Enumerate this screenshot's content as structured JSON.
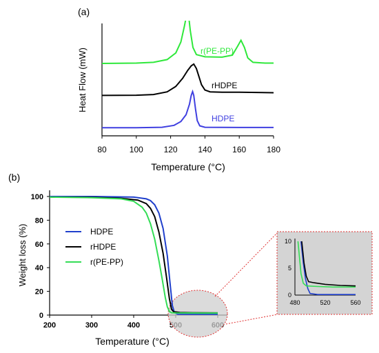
{
  "chart_data": [
    {
      "panel_label": "(a)",
      "type": "line",
      "xlabel": "Temperature (°C)",
      "ylabel": "Heat Flow (mW)",
      "xlim": [
        80,
        180
      ],
      "x_ticks": [
        "80",
        "100",
        "120",
        "140",
        "160",
        "180"
      ],
      "y_ticks_shown": false,
      "legend": "inline labels",
      "series": [
        {
          "name": "r(PE-PP)",
          "color": "#2ee83a",
          "points": [
            [
              80,
              0.25
            ],
            [
              100,
              0.28
            ],
            [
              110,
              0.35
            ],
            [
              118,
              0.6
            ],
            [
              123,
              1.2
            ],
            [
              126,
              2.2
            ],
            [
              128,
              3.6
            ],
            [
              129.5,
              4.8
            ],
            [
              130.5,
              4.6
            ],
            [
              131.5,
              3.2
            ],
            [
              133,
              1.7
            ],
            [
              135,
              1.05
            ],
            [
              140,
              0.85
            ],
            [
              150,
              0.82
            ],
            [
              156,
              1.0
            ],
            [
              159,
              1.8
            ],
            [
              161,
              2.35
            ],
            [
              163,
              1.7
            ],
            [
              165,
              0.75
            ],
            [
              168,
              0.35
            ],
            [
              175,
              0.28
            ],
            [
              180,
              0.28
            ]
          ]
        },
        {
          "name": "rHDPE",
          "color": "#000000",
          "points": [
            [
              80,
              0.2
            ],
            [
              100,
              0.22
            ],
            [
              110,
              0.3
            ],
            [
              118,
              0.6
            ],
            [
              123,
              1.2
            ],
            [
              127,
              2.1
            ],
            [
              130,
              3.0
            ],
            [
              132,
              3.5
            ],
            [
              133.5,
              3.7
            ],
            [
              135,
              3.2
            ],
            [
              136.5,
              2.3
            ],
            [
              138,
              1.4
            ],
            [
              140,
              0.8
            ],
            [
              143,
              0.6
            ],
            [
              150,
              0.55
            ],
            [
              160,
              0.55
            ],
            [
              180,
              0.5
            ]
          ]
        },
        {
          "name": "HDPE",
          "color": "#3f3fe0",
          "points": [
            [
              80,
              0.05
            ],
            [
              100,
              0.06
            ],
            [
              115,
              0.1
            ],
            [
              122,
              0.3
            ],
            [
              126,
              0.7
            ],
            [
              129,
              1.4
            ],
            [
              131,
              2.5
            ],
            [
              132,
              3.4
            ],
            [
              132.8,
              3.8
            ],
            [
              133.5,
              3.4
            ],
            [
              134.5,
              2.0
            ],
            [
              135.5,
              0.8
            ],
            [
              137,
              0.25
            ],
            [
              140,
              0.1
            ],
            [
              160,
              0.08
            ],
            [
              180,
              0.08
            ]
          ]
        }
      ]
    },
    {
      "panel_label": "(b)",
      "type": "line",
      "xlabel": "Temperature (°C)",
      "ylabel": "Weight loss (%)",
      "xlim": [
        200,
        600
      ],
      "ylim": [
        0,
        100
      ],
      "x_ticks": [
        "200",
        "300",
        "400",
        "500",
        "600"
      ],
      "y_ticks": [
        "0",
        "20",
        "40",
        "60",
        "80",
        "100"
      ],
      "legend": "left",
      "series": [
        {
          "name": "HDPE",
          "legend_label": " HDPE",
          "color": "#1f3fcc",
          "points": [
            [
              200,
              100
            ],
            [
              300,
              100
            ],
            [
              400,
              99.5
            ],
            [
              430,
              98
            ],
            [
              440,
              96.5
            ],
            [
              450,
              93
            ],
            [
              460,
              86
            ],
            [
              470,
              73
            ],
            [
              480,
              50
            ],
            [
              487,
              25
            ],
            [
              492,
              8
            ],
            [
              497,
              2
            ],
            [
              505,
              0.8
            ],
            [
              560,
              0.7
            ],
            [
              600,
              0.7
            ]
          ]
        },
        {
          "name": "rHDPE",
          "legend_label": "rHDPE",
          "color": "#000000",
          "points": [
            [
              200,
              99.5
            ],
            [
              300,
              99.3
            ],
            [
              370,
              98.5
            ],
            [
              410,
              97
            ],
            [
              430,
              94
            ],
            [
              440,
              90
            ],
            [
              450,
              83
            ],
            [
              460,
              70
            ],
            [
              470,
              52
            ],
            [
              478,
              32
            ],
            [
              485,
              14
            ],
            [
              490,
              5
            ],
            [
              495,
              2.8
            ],
            [
              510,
              2.2
            ],
            [
              540,
              2.0
            ],
            [
              600,
              1.8
            ]
          ]
        },
        {
          "name": "r(PE-PP)",
          "legend_label": "r(PE-PP)",
          "color": "#33dd55",
          "points": [
            [
              200,
              99.5
            ],
            [
              300,
              99
            ],
            [
              370,
              98
            ],
            [
              400,
              96
            ],
            [
              420,
              91
            ],
            [
              430,
              86
            ],
            [
              440,
              77
            ],
            [
              450,
              64
            ],
            [
              460,
              46
            ],
            [
              468,
              30
            ],
            [
              475,
              15
            ],
            [
              480,
              7
            ],
            [
              485,
              3
            ],
            [
              490,
              2
            ],
            [
              500,
              1.8
            ],
            [
              560,
              1.7
            ],
            [
              600,
              1.7
            ]
          ]
        }
      ]
    },
    {
      "panel_label": "inset",
      "type": "line",
      "xlim": [
        480,
        560
      ],
      "ylim": [
        0,
        10
      ],
      "x_ticks": [
        "480",
        "520",
        "560"
      ],
      "y_ticks": [
        "0",
        "5",
        "10"
      ],
      "series": [
        {
          "name": "HDPE",
          "color": "#1f3fcc",
          "points": [
            [
              488,
              10
            ],
            [
              491,
              6
            ],
            [
              494,
              3
            ],
            [
              497,
              1.2
            ],
            [
              500,
              0.3
            ],
            [
              510,
              0.1
            ],
            [
              560,
              0.1
            ]
          ]
        },
        {
          "name": "rHDPE",
          "color": "#000000",
          "points": [
            [
              489,
              10
            ],
            [
              492,
              6
            ],
            [
              495,
              3.5
            ],
            [
              498,
              2.5
            ],
            [
              505,
              2.3
            ],
            [
              520,
              2.0
            ],
            [
              540,
              1.8
            ],
            [
              560,
              1.7
            ]
          ]
        },
        {
          "name": "r(PE-PP)",
          "color": "#33dd55",
          "points": [
            [
              484,
              10
            ],
            [
              486,
              7
            ],
            [
              488,
              4
            ],
            [
              491,
              2.2
            ],
            [
              495,
              1.7
            ],
            [
              510,
              1.6
            ],
            [
              530,
              1.5
            ],
            [
              560,
              1.5
            ]
          ]
        }
      ]
    }
  ]
}
